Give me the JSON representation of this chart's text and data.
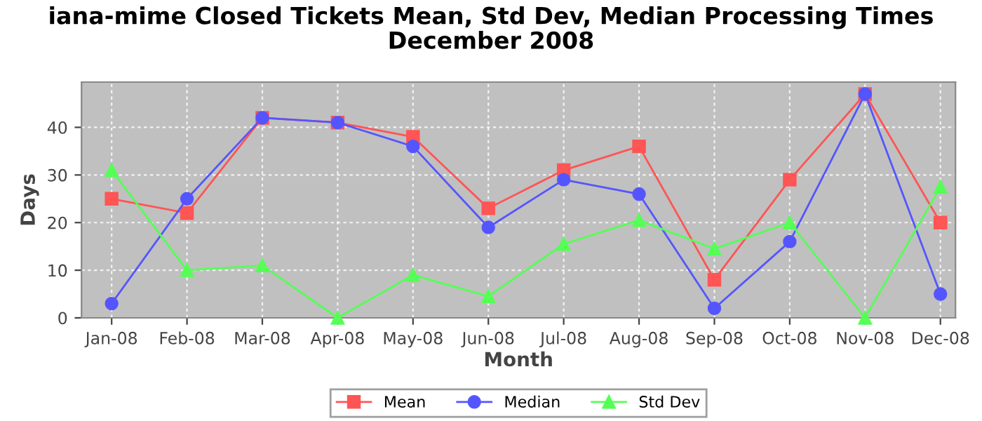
{
  "chart_data": {
    "type": "line",
    "title": "iana-mime Closed Tickets Mean, Std Dev, Median Processing Times\nDecember 2008",
    "xlabel": "Month",
    "ylabel": "Days",
    "categories": [
      "Jan-08",
      "Feb-08",
      "Mar-08",
      "Apr-08",
      "May-08",
      "Jun-08",
      "Jul-08",
      "Aug-08",
      "Sep-08",
      "Oct-08",
      "Nov-08",
      "Dec-08"
    ],
    "series": [
      {
        "name": "Mean",
        "color": "#ff5555",
        "marker": "square",
        "values": [
          25,
          22,
          42,
          41,
          38,
          23,
          31,
          36,
          8,
          29,
          47,
          20
        ]
      },
      {
        "name": "Median",
        "color": "#5555ff",
        "marker": "circle",
        "values": [
          3,
          25,
          42,
          41,
          36,
          19,
          29,
          26,
          2,
          16,
          47,
          5
        ]
      },
      {
        "name": "Std Dev",
        "color": "#55ff55",
        "marker": "triangle",
        "values": [
          31,
          10,
          11,
          0,
          9,
          4.5,
          15.5,
          20.5,
          14.5,
          20,
          0,
          27.5
        ]
      }
    ],
    "ylim": [
      0,
      49.5
    ],
    "yticks": [
      0,
      10,
      20,
      30,
      40
    ],
    "grid": true,
    "legend": "bottom",
    "line_style": "solid"
  }
}
